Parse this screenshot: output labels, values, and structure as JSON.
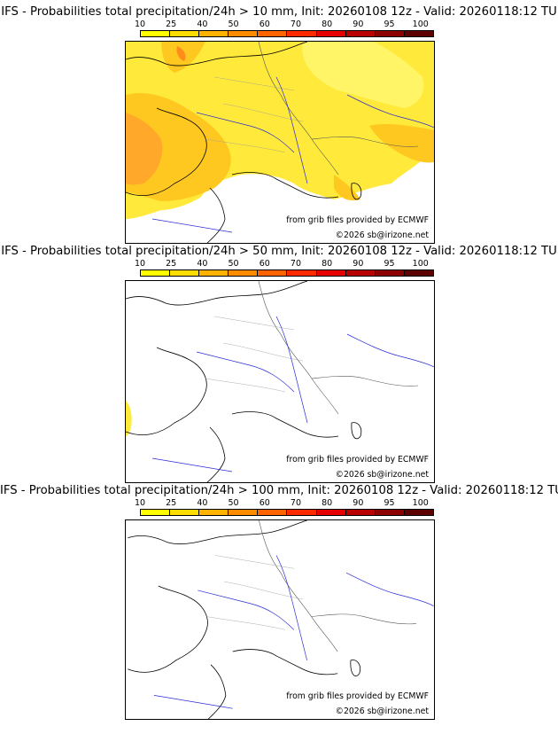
{
  "colors": {
    "scale": [
      "#ffff00",
      "#ffdd00",
      "#ffb300",
      "#ff8c00",
      "#ff6400",
      "#ff2a00",
      "#e60000",
      "#b80000",
      "#8c0000",
      "#5c0000"
    ],
    "coast": "#000000",
    "rivers": "#2a2ad8",
    "borders_admin": "#9a9a9a",
    "p10_light": "#ffee33",
    "p10_mid": "#ffc21a",
    "p10_dark": "#ffa020"
  },
  "scale_ticks": [
    "10",
    "25",
    "40",
    "50",
    "60",
    "70",
    "80",
    "90",
    "95",
    "100"
  ],
  "credits": {
    "source": "from grib files provided by ECMWF",
    "copyright": "©2026 sb@irizone.net"
  },
  "panels": [
    {
      "title": "IFS - Probabilities total precipitation/24h > 10 mm, Init: 20260108 12z - Valid: 20260118:12 TU",
      "threshold_mm": 10
    },
    {
      "title": "IFS - Probabilities total precipitation/24h > 50 mm, Init: 20260108 12z - Valid: 20260118:12 TU",
      "threshold_mm": 50
    },
    {
      "title": "IFS - Probabilities total precipitation/24h > 100 mm, Init: 20260108 12z - Valid: 20260118:12 TU",
      "threshold_mm": 100
    }
  ]
}
